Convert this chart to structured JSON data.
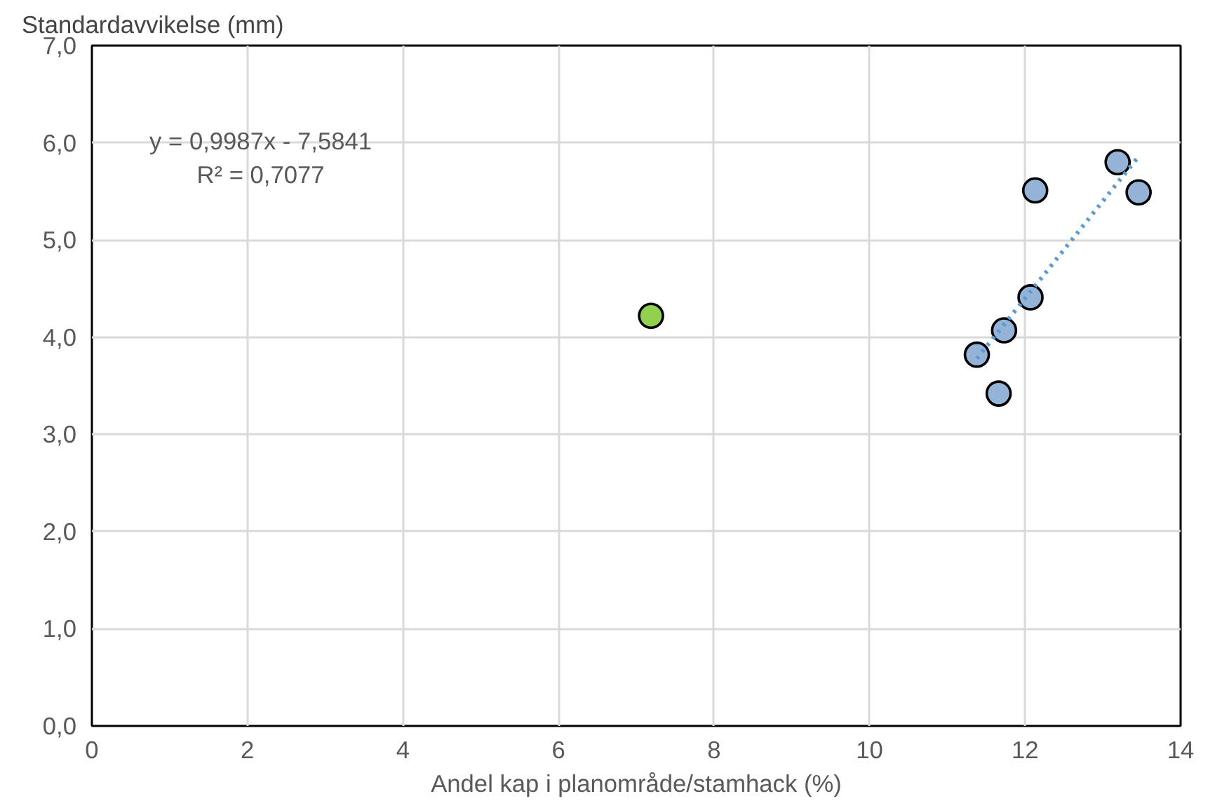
{
  "chart_data": {
    "type": "scatter",
    "ylabel": "Standardavvikelse (mm)",
    "xlabel": "Andel kap i planområde/stamhack (%)",
    "xlim": [
      0,
      14
    ],
    "xticks": [
      0,
      2,
      4,
      6,
      8,
      10,
      12,
      14
    ],
    "ylim": [
      0,
      7
    ],
    "yticks": [
      {
        "value": 0,
        "label": "0,0"
      },
      {
        "value": 1,
        "label": "1,0"
      },
      {
        "value": 2,
        "label": "2,0"
      },
      {
        "value": 3,
        "label": "3,0"
      },
      {
        "value": 4,
        "label": "4,0"
      },
      {
        "value": 5,
        "label": "5,0"
      },
      {
        "value": 6,
        "label": "6,0"
      },
      {
        "value": 7,
        "label": "7,0"
      }
    ],
    "grid": true,
    "marker": "circle",
    "annotations": [
      "y = 0,9987x - 7,5841",
      "R² = 0,7077"
    ],
    "series": [
      {
        "color": "#92d050",
        "x": [
          7.19
        ],
        "values": [
          4.22
        ]
      },
      {
        "color": "#95b3d7",
        "x": [
          13.19,
          13.46,
          12.13,
          12.07,
          11.73,
          11.38,
          11.66
        ],
        "values": [
          5.8,
          5.49,
          5.51,
          4.41,
          4.07,
          3.82,
          3.42
        ]
      },
      {
        "type": "line",
        "color": "#5b9bd5",
        "line_style": "dotted",
        "marker": "none",
        "x": [
          11.38,
          13.46
        ],
        "values": [
          3.78,
          5.86
        ]
      }
    ]
  }
}
